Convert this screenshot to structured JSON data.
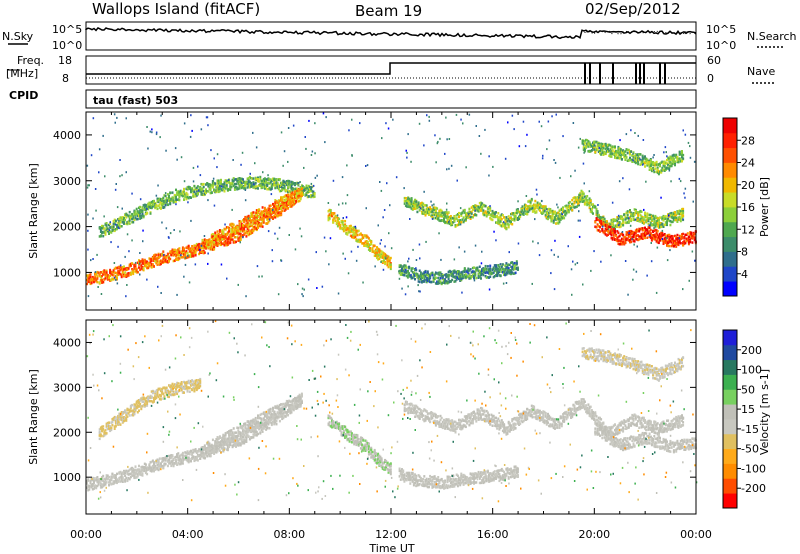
{
  "header": {
    "site": "Wallops Island (fitACF)",
    "beam": "Beam 19",
    "date": "02/Sep/2012"
  },
  "strip_labels": {
    "nsky": "N.Sky",
    "nsky_top": "10^5",
    "nsky_bot": "10^0",
    "nsearch": "N.Search",
    "nsearch_top": "10^5",
    "nsearch_bot": "10^0",
    "freq_label_1": "Freq.",
    "freq_label_2": "[MHz]",
    "freq_top": "18",
    "freq_bot": "8",
    "nave": "Nave",
    "nave_top": "60",
    "nave_bot": "0",
    "cpid": "CPID",
    "cpid_value": "tau (fast) 503"
  },
  "colors": {
    "power": [
      "#0000ff",
      "#1f46c8",
      "#2f6e8c",
      "#3c8c6a",
      "#4fa84f",
      "#8ccf3a",
      "#c8dc28",
      "#f0b800",
      "#ff8a00",
      "#ff5000",
      "#ff2000",
      "#ee0000"
    ],
    "velocity": [
      "#ff0000",
      "#ff4d00",
      "#ff8c00",
      "#ffaa1a",
      "#e0c060",
      "#c8c8c0",
      "#c0c0b8",
      "#78d060",
      "#3cb050",
      "#287860",
      "#204aa0",
      "#1f1fd8"
    ]
  },
  "chart_data": [
    {
      "type": "heatmap",
      "panel": "power",
      "xlabel": "",
      "ylabel": "Slant Range [km]",
      "x_ticks": [
        "00:00",
        "04:00",
        "08:00",
        "12:00",
        "16:00",
        "20:00",
        "00:00"
      ],
      "y_ticks": [
        "1000",
        "2000",
        "3000",
        "4000"
      ],
      "xlim": [
        0,
        24
      ],
      "ylim": [
        180,
        4500
      ],
      "colorbar_label": "Power [dB]",
      "colorbar_ticks": [
        "4",
        "8",
        "12",
        "16",
        "20",
        "24",
        "28"
      ],
      "colorbar_range": [
        0,
        30
      ],
      "echo_bands": [
        {
          "t": [
            0.0,
            1.5,
            3.0,
            4.5,
            6.0,
            7.5,
            8.5
          ],
          "r": [
            850,
            1050,
            1350,
            1550,
            1850,
            2350,
            2800
          ],
          "value": 22
        },
        {
          "t": [
            0.5,
            2.0,
            3.5,
            5.0,
            6.5,
            8.0,
            9.0
          ],
          "r": [
            1900,
            2300,
            2700,
            2900,
            3000,
            2900,
            2750
          ],
          "value": 12
        },
        {
          "t": [
            4.5,
            5.5,
            6.5,
            7.5,
            8.5
          ],
          "r": [
            1600,
            1900,
            2200,
            2500,
            2750
          ],
          "value": 21
        },
        {
          "t": [
            9.5,
            10.2,
            11.0,
            11.5,
            12.0
          ],
          "r": [
            2300,
            2000,
            1700,
            1400,
            1200
          ],
          "value": 18
        },
        {
          "t": [
            12.3,
            13.0,
            14.0,
            15.0,
            16.0,
            17.0
          ],
          "r": [
            1100,
            950,
            900,
            1000,
            1050,
            1150
          ],
          "value": 9
        },
        {
          "t": [
            12.5,
            13.5,
            14.5,
            15.5,
            16.5,
            17.5,
            18.5,
            19.5,
            20.5,
            21.5,
            22.5,
            23.5
          ],
          "r": [
            2600,
            2350,
            2150,
            2450,
            2100,
            2500,
            2200,
            2700,
            2000,
            2300,
            2100,
            2300
          ],
          "value": 14
        },
        {
          "t": [
            20.0,
            21.0,
            22.0,
            23.0,
            24.0
          ],
          "r": [
            2100,
            1750,
            1900,
            1700,
            1800
          ],
          "value": 26
        },
        {
          "t": [
            19.5,
            20.5,
            21.5,
            22.5,
            23.5
          ],
          "r": [
            3800,
            3700,
            3550,
            3300,
            3600
          ],
          "value": 13
        }
      ]
    },
    {
      "type": "heatmap",
      "panel": "velocity",
      "xlabel": "Time UT",
      "ylabel": "Slant Range [km]",
      "x_ticks": [
        "00:00",
        "04:00",
        "08:00",
        "12:00",
        "16:00",
        "20:00",
        "00:00"
      ],
      "y_ticks": [
        "1000",
        "2000",
        "3000",
        "4000"
      ],
      "xlim": [
        0,
        24
      ],
      "ylim": [
        180,
        4500
      ],
      "colorbar_label": "Velocity [m s-1]",
      "colorbar_ticks": [
        "200",
        "100",
        "50",
        "15",
        "-15",
        "-50",
        "-100",
        "-200"
      ],
      "colorbar_range": [
        -300,
        300
      ],
      "echo_bands": [
        {
          "t": [
            0.0,
            1.5,
            3.0,
            4.5,
            6.0,
            7.5,
            8.5
          ],
          "r": [
            850,
            1050,
            1350,
            1550,
            1850,
            2350,
            2800
          ],
          "value": 0
        },
        {
          "t": [
            0.5,
            1.5,
            2.5,
            3.5,
            4.5
          ],
          "r": [
            2000,
            2400,
            2800,
            3000,
            3100
          ],
          "value": -60
        },
        {
          "t": [
            4.5,
            5.5,
            6.5,
            7.5,
            8.5
          ],
          "r": [
            1600,
            1900,
            2200,
            2500,
            2750
          ],
          "value": 0
        },
        {
          "t": [
            9.5,
            10.2,
            11.0,
            11.5,
            12.0
          ],
          "r": [
            2300,
            2000,
            1700,
            1400,
            1200
          ],
          "value": 40
        },
        {
          "t": [
            12.3,
            13.0,
            14.0,
            15.0,
            16.0,
            17.0
          ],
          "r": [
            1100,
            950,
            900,
            1000,
            1050,
            1150
          ],
          "value": 0
        },
        {
          "t": [
            12.5,
            13.5,
            14.5,
            15.5,
            16.5,
            17.5,
            18.5,
            19.5,
            20.5,
            21.5,
            22.5,
            23.5
          ],
          "r": [
            2600,
            2350,
            2150,
            2450,
            2100,
            2500,
            2200,
            2700,
            2000,
            2300,
            2100,
            2300
          ],
          "value": 0
        },
        {
          "t": [
            20.0,
            21.0,
            22.0,
            23.0,
            24.0
          ],
          "r": [
            2100,
            1750,
            1900,
            1700,
            1800
          ],
          "value": 0
        },
        {
          "t": [
            19.5,
            20.5,
            21.5,
            22.5,
            23.5
          ],
          "r": [
            3800,
            3700,
            3550,
            3300,
            3600
          ],
          "value": -40
        }
      ]
    }
  ],
  "xlabel": "Time UT"
}
